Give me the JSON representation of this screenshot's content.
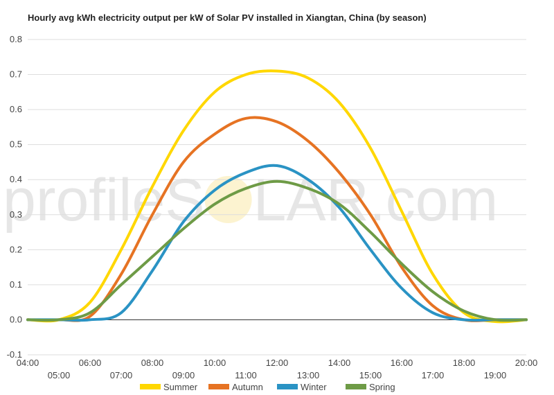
{
  "chart_data": {
    "type": "line",
    "title": "Hourly avg kWh electricity output per kW of Solar PV installed in Xiangtan, China (by season)",
    "watermark": "profileSOLAR.com",
    "watermark_left": "profileS",
    "watermark_right": "LAR.com",
    "xlabel": "",
    "ylabel": "",
    "x_tick_labels": [
      "04:00",
      "05:00",
      "06:00",
      "07:00",
      "08:00",
      "09:00",
      "10:00",
      "11:00",
      "12:00",
      "13:00",
      "14:00",
      "15:00",
      "16:00",
      "17:00",
      "18:00",
      "19:00",
      "20:00"
    ],
    "x": [
      4,
      5,
      6,
      7,
      8,
      9,
      10,
      11,
      12,
      13,
      14,
      15,
      16,
      17,
      18,
      19,
      20
    ],
    "xlim": [
      4,
      20
    ],
    "ylim": [
      -0.1,
      0.8
    ],
    "y_ticks": [
      "-0.1",
      "0.0",
      "0.1",
      "0.2",
      "0.3",
      "0.4",
      "0.5",
      "0.6",
      "0.7",
      "0.8"
    ],
    "grid": true,
    "legend_position": "bottom",
    "series": [
      {
        "name": "Summer",
        "color": "#FFD700",
        "values": [
          0.0,
          0.0,
          0.05,
          0.2,
          0.38,
          0.54,
          0.65,
          0.7,
          0.71,
          0.69,
          0.62,
          0.49,
          0.31,
          0.13,
          0.02,
          -0.005,
          0.0
        ]
      },
      {
        "name": "Autumn",
        "color": "#E67323",
        "values": [
          0.0,
          0.0,
          0.01,
          0.13,
          0.3,
          0.45,
          0.53,
          0.575,
          0.565,
          0.51,
          0.42,
          0.3,
          0.15,
          0.04,
          0.0,
          0.0,
          0.0
        ]
      },
      {
        "name": "Winter",
        "color": "#2A93C4",
        "values": [
          0.0,
          0.0,
          0.0,
          0.02,
          0.14,
          0.28,
          0.37,
          0.42,
          0.44,
          0.4,
          0.32,
          0.2,
          0.09,
          0.02,
          0.0,
          0.0,
          0.0
        ]
      },
      {
        "name": "Spring",
        "color": "#6E9B46",
        "values": [
          0.0,
          0.0,
          0.02,
          0.1,
          0.18,
          0.26,
          0.33,
          0.375,
          0.395,
          0.375,
          0.33,
          0.25,
          0.16,
          0.08,
          0.025,
          0.0,
          0.0
        ]
      }
    ]
  }
}
